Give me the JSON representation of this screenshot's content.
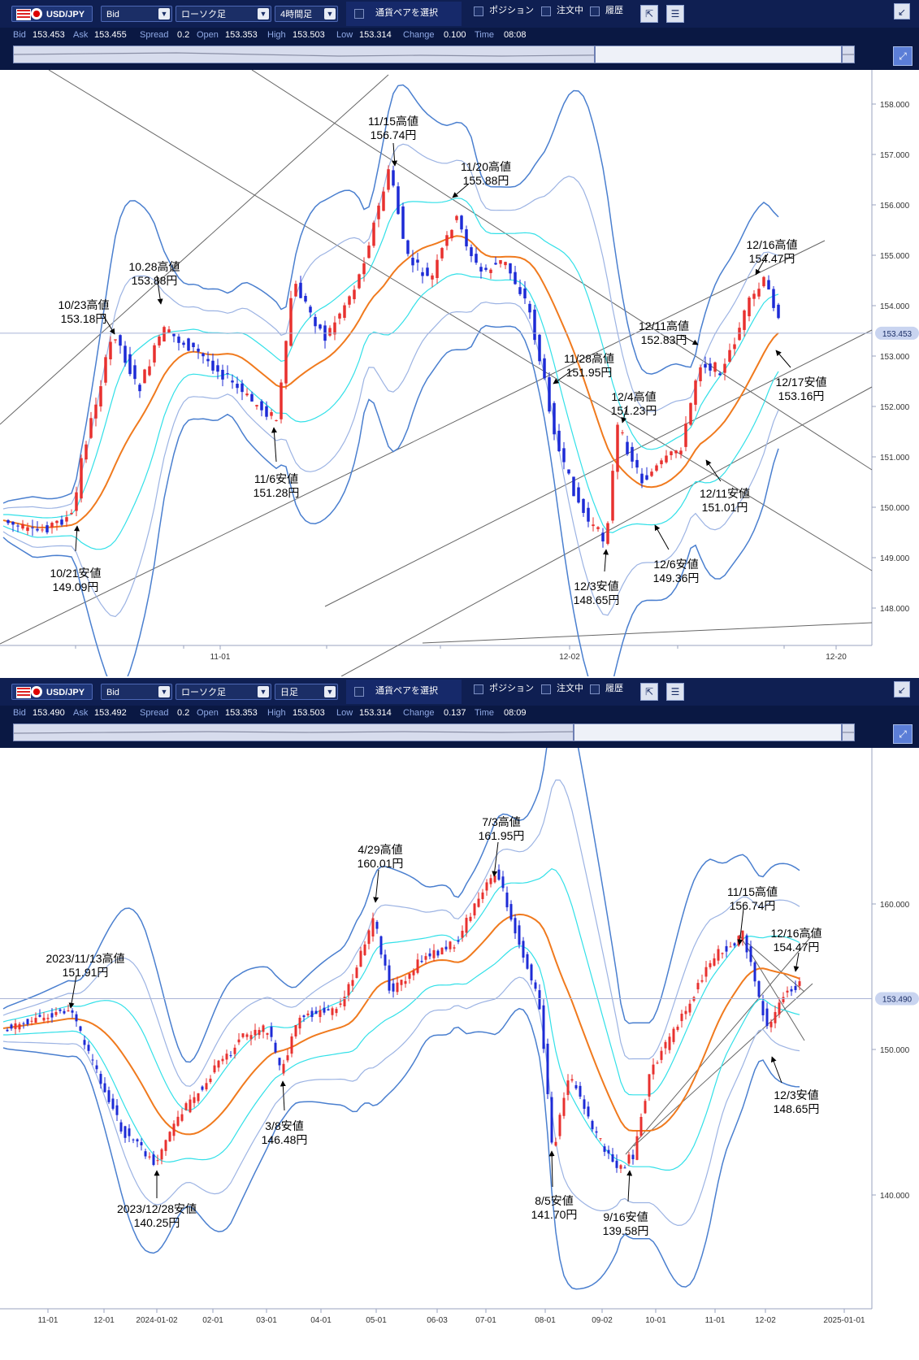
{
  "panels": [
    {
      "toolbar": {
        "pair": "USD/JPY",
        "price_type": "Bid",
        "chart_kind": "ローソク足",
        "timeframe": "4時間足",
        "select_pair_label": "通貨ペアを選択",
        "position_label": "ポジション",
        "orders_label": "注文中",
        "history_label": "履歴"
      },
      "quote": [
        {
          "k": "Bid",
          "v": "153.453"
        },
        {
          "k": "Ask",
          "v": "153.455"
        },
        {
          "k": "Spread",
          "v": "0.2"
        },
        {
          "k": "Open",
          "v": "153.353"
        },
        {
          "k": "High",
          "v": "153.503"
        },
        {
          "k": "Low",
          "v": "153.314"
        },
        {
          "k": "Change",
          "v": "0.100"
        },
        {
          "k": "Time",
          "v": "08:08"
        }
      ],
      "current_price_label": "153.453",
      "chart_data": {
        "type": "candlestick",
        "y_ticks": [
          "158.000",
          "157.000",
          "156.000",
          "155.000",
          "154.000",
          "153.000",
          "152.000",
          "151.000",
          "150.000",
          "149.000",
          "148.000"
        ],
        "x_ticks": [
          "11-01",
          "12-02",
          "12-20"
        ],
        "current_price": 153.453,
        "indicators": [
          "bollinger-bands",
          "moving-average"
        ],
        "annotations": [
          {
            "l1": "10/21安値",
            "l2": "149.09円"
          },
          {
            "l1": "10/23高値",
            "l2": "153.18円"
          },
          {
            "l1": "10.28高値",
            "l2": "153.88円"
          },
          {
            "l1": "11/6安値",
            "l2": "151.28円"
          },
          {
            "l1": "11/15高値",
            "l2": "156.74円"
          },
          {
            "l1": "11/20高値",
            "l2": "155.88円"
          },
          {
            "l1": "11/28高値",
            "l2": "151.95円"
          },
          {
            "l1": "12/3安値",
            "l2": "148.65円"
          },
          {
            "l1": "12/4高値",
            "l2": "151.23円"
          },
          {
            "l1": "12/6安値",
            "l2": "149.36円"
          },
          {
            "l1": "12/11高値",
            "l2": "152.83円"
          },
          {
            "l1": "12/11安値",
            "l2": "151.01円"
          },
          {
            "l1": "12/16高値",
            "l2": "154.47円"
          },
          {
            "l1": "12/17安値",
            "l2": "153.16円"
          }
        ]
      }
    },
    {
      "toolbar": {
        "pair": "USD/JPY",
        "price_type": "Bid",
        "chart_kind": "ローソク足",
        "timeframe": "日足",
        "select_pair_label": "通貨ペアを選択",
        "position_label": "ポジション",
        "orders_label": "注文中",
        "history_label": "履歴"
      },
      "quote": [
        {
          "k": "Bid",
          "v": "153.490"
        },
        {
          "k": "Ask",
          "v": "153.492"
        },
        {
          "k": "Spread",
          "v": "0.2"
        },
        {
          "k": "Open",
          "v": "153.353"
        },
        {
          "k": "High",
          "v": "153.503"
        },
        {
          "k": "Low",
          "v": "153.314"
        },
        {
          "k": "Change",
          "v": "0.137"
        },
        {
          "k": "Time",
          "v": "08:09"
        }
      ],
      "current_price_label": "153.490",
      "chart_data": {
        "type": "candlestick",
        "y_ticks": [
          "160.000",
          "150.000",
          "140.000"
        ],
        "x_ticks": [
          "11-01",
          "12-01",
          "2024-01-02",
          "02-01",
          "03-01",
          "04-01",
          "05-01",
          "06-03",
          "07-01",
          "08-01",
          "09-02",
          "10-01",
          "11-01",
          "12-02",
          "2025-01-01"
        ],
        "current_price": 153.49,
        "indicators": [
          "bollinger-bands",
          "moving-average"
        ],
        "annotations": [
          {
            "l1": "2023/11/13高値",
            "l2": "151.91円"
          },
          {
            "l1": "2023/12/28安値",
            "l2": "140.25円"
          },
          {
            "l1": "3/8安値",
            "l2": "146.48円"
          },
          {
            "l1": "4/29高値",
            "l2": "160.01円"
          },
          {
            "l1": "7/3高値",
            "l2": "161.95円"
          },
          {
            "l1": "8/5安値",
            "l2": "141.70円"
          },
          {
            "l1": "9/16安値",
            "l2": "139.58円"
          },
          {
            "l1": "11/15高値",
            "l2": "156.74円"
          },
          {
            "l1": "12/16高値",
            "l2": "154.47円"
          },
          {
            "l1": "12/3安値",
            "l2": "148.65円"
          }
        ]
      }
    }
  ],
  "colors": {
    "toolbar": "#0f1f52",
    "up": "#e8312f",
    "down": "#1d2bd6",
    "band_outer": "#4a7fcf",
    "band_mid": "#9cb3e3",
    "band_inner": "#32e0e8",
    "ma": "#f07a1e"
  }
}
